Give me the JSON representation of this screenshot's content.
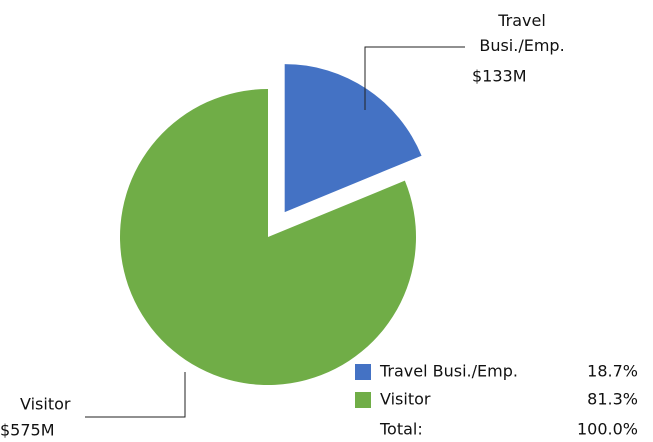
{
  "chart_data": {
    "type": "pie",
    "categories": [
      "Travel Busi./Emp.",
      "Visitor"
    ],
    "values": [
      133,
      575
    ],
    "value_labels": [
      "$133M",
      "$575M"
    ],
    "colors": [
      "#4472c4",
      "#70ad47"
    ],
    "exploded": [
      true,
      false
    ],
    "percent_labels": [
      "18.7%",
      "81.3%"
    ],
    "total_label": "Total:",
    "total_percent_label": "100.0%"
  }
}
